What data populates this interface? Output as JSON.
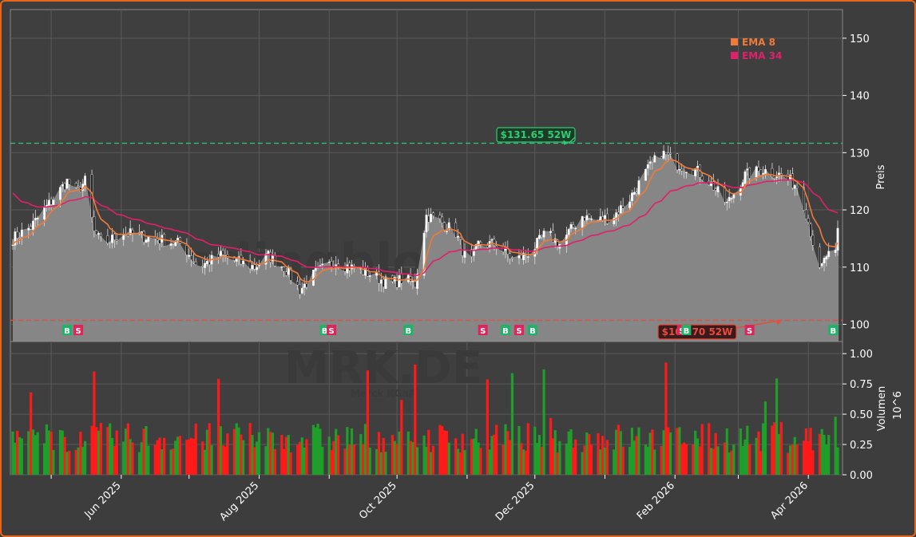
{
  "chart_data": {
    "type": "candlestick",
    "watermark_top": "tradingblog.trade",
    "watermark_ticker": "MRK.DE",
    "watermark_sub": "Merck KGaA",
    "price_axis": {
      "label": "Preis",
      "ylim": [
        97,
        155
      ],
      "ticks": [
        100,
        110,
        120,
        130,
        140,
        150
      ]
    },
    "volume_axis": {
      "label": "Volumen",
      "exponent_label": "10^6",
      "ylim": [
        0,
        1.1
      ],
      "ticks": [
        "0.00",
        "0.25",
        "0.50",
        "0.75",
        "1.00"
      ]
    },
    "x_ticks": [
      "Jun 2025",
      "Aug 2025",
      "Oct 2025",
      "Dec 2025",
      "Feb 2026",
      "Apr 2026"
    ],
    "legend": [
      {
        "name": "EMA 8",
        "color": "#f07a3a"
      },
      {
        "name": "EMA 34",
        "color": "#e0206a"
      }
    ],
    "high_52w": {
      "value": 131.65,
      "label": "$131.65 52W",
      "date": "2025-12-16",
      "color": "#2ecc71"
    },
    "low_52w": {
      "value": 100.7,
      "label": "$100.70 52W",
      "date": "2026-03-20",
      "color": "#e74c3c"
    },
    "last_price": 116.8,
    "date_range": [
      "2025-04-14",
      "2026-04-14"
    ],
    "anchors": [
      [
        "2025-04-14",
        115
      ],
      [
        "2025-04-22",
        117
      ],
      [
        "2025-04-30",
        121
      ],
      [
        "2025-05-08",
        125
      ],
      [
        "2025-05-12",
        123
      ],
      [
        "2025-05-16",
        125
      ],
      [
        "2025-05-20",
        116
      ],
      [
        "2025-05-24",
        114
      ],
      [
        "2025-06-02",
        116
      ],
      [
        "2025-06-15",
        115
      ],
      [
        "2025-06-28",
        114
      ],
      [
        "2025-07-05",
        110
      ],
      [
        "2025-07-15",
        112
      ],
      [
        "2025-07-22",
        111
      ],
      [
        "2025-07-30",
        110
      ],
      [
        "2025-08-05",
        112
      ],
      [
        "2025-08-12",
        110
      ],
      [
        "2025-08-19",
        106
      ],
      [
        "2025-08-26",
        109
      ],
      [
        "2025-09-04",
        111
      ],
      [
        "2025-09-10",
        110
      ],
      [
        "2025-09-18",
        109
      ],
      [
        "2025-09-28",
        107
      ],
      [
        "2025-10-04",
        108
      ],
      [
        "2025-10-09",
        107
      ],
      [
        "2025-10-14",
        119
      ],
      [
        "2025-10-20",
        118
      ],
      [
        "2025-10-27",
        116
      ],
      [
        "2025-11-02",
        110
      ],
      [
        "2025-11-06",
        114
      ],
      [
        "2025-11-14",
        114
      ],
      [
        "2025-11-22",
        111
      ],
      [
        "2025-11-30",
        113
      ],
      [
        "2025-12-06",
        116
      ],
      [
        "2025-12-12",
        114
      ],
      [
        "2025-12-22",
        119
      ],
      [
        "2025-12-28",
        118
      ],
      [
        "2026-01-05",
        119
      ],
      [
        "2026-01-12",
        122
      ],
      [
        "2026-01-20",
        127
      ],
      [
        "2026-01-26",
        130
      ],
      [
        "2026-02-02",
        128
      ],
      [
        "2026-02-10",
        127
      ],
      [
        "2026-02-16",
        125
      ],
      [
        "2026-02-24",
        121
      ],
      [
        "2026-03-04",
        126
      ],
      [
        "2026-03-12",
        127
      ],
      [
        "2026-03-20",
        126
      ],
      [
        "2026-03-28",
        124
      ],
      [
        "2026-04-01",
        118
      ],
      [
        "2026-04-06",
        109
      ],
      [
        "2026-04-09",
        112
      ]
    ],
    "signals": [
      {
        "type": "B",
        "date": "2025-05-08"
      },
      {
        "type": "S",
        "date": "2025-05-13"
      },
      {
        "type": "B",
        "date": "2025-08-30"
      },
      {
        "type": "S",
        "date": "2025-09-02"
      },
      {
        "type": "B",
        "date": "2025-10-06"
      },
      {
        "type": "S",
        "date": "2025-11-08"
      },
      {
        "type": "B",
        "date": "2025-11-18"
      },
      {
        "type": "S",
        "date": "2025-11-24"
      },
      {
        "type": "B",
        "date": "2025-11-30"
      },
      {
        "type": "S",
        "date": "2026-02-04"
      },
      {
        "type": "B",
        "date": "2026-02-06"
      },
      {
        "type": "S",
        "date": "2026-03-06"
      },
      {
        "type": "B",
        "date": "2026-04-12"
      }
    ]
  }
}
